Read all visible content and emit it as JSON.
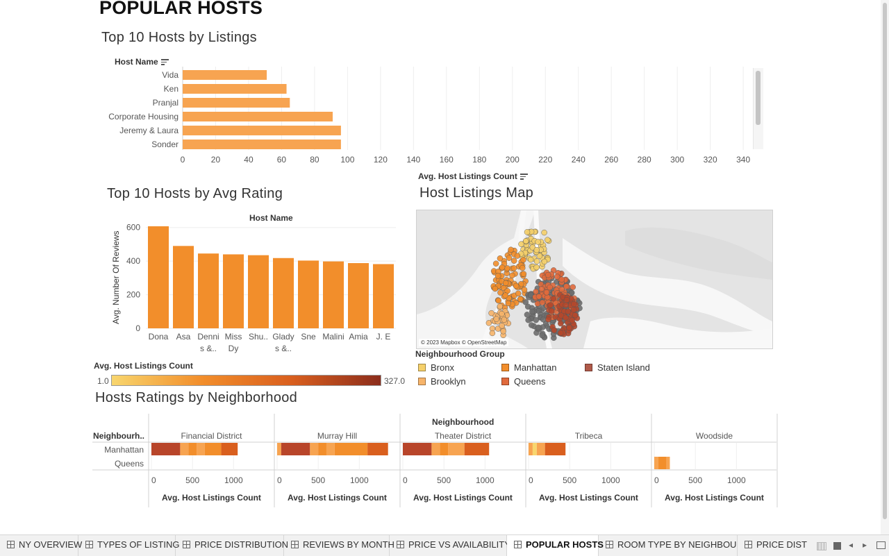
{
  "dashboard_title": "POPULAR HOSTS",
  "top_listings": {
    "title": "Top 10 Hosts by Listings",
    "row_header": "Host Name",
    "x_axis_title": "Avg. Host Listings Count",
    "bar_color": "#F7A451"
  },
  "avg_rating": {
    "title": "Top 10 Hosts by Avg Rating",
    "column_header": "Host Name",
    "y_axis_title": "Avg. Number Of Reviews",
    "bar_color": "#F28E2B"
  },
  "color_legend": {
    "title": "Avg. Host Listings Count",
    "min_label": "1.0",
    "max_label": "327.0",
    "gradient": [
      "#F8D66E",
      "#F28E2B",
      "#D95F1E",
      "#8C2D1C"
    ]
  },
  "map": {
    "title": "Host Listings Map",
    "attribution": "© 2023 Mapbox © OpenStreetMap"
  },
  "neighbourhood_legend": {
    "title": "Neighbourhood Group",
    "items": [
      {
        "label": "Bronx",
        "color": "#F5D06A"
      },
      {
        "label": "Manhattan",
        "color": "#F28E2B"
      },
      {
        "label": "Staten Island",
        "color": "#B05A4A"
      },
      {
        "label": "Brooklyn",
        "color": "#F7B46A"
      },
      {
        "label": "Queens",
        "color": "#E06A3C"
      }
    ]
  },
  "heatmap": {
    "title": "Hosts Ratings by Neighborhood",
    "column_header": "Neighbourhood",
    "row_header": "Neighbourh..",
    "rows": [
      "Manhattan",
      "Queens"
    ],
    "axis_title": "Avg. Host Listings Count"
  },
  "chart_data": [
    {
      "type": "bar",
      "orientation": "horizontal",
      "title": "Top 10 Hosts by Listings",
      "ylabel": "Host Name",
      "xlabel": "Avg. Host Listings Count",
      "categories": [
        "Vida",
        "Ken",
        "Pranjal",
        "Corporate Housing",
        "Jeremy & Laura",
        "Sonder"
      ],
      "values": [
        51,
        63,
        65,
        91,
        96,
        96
      ],
      "xlim": [
        0,
        345
      ],
      "x_ticks": [
        0,
        20,
        40,
        60,
        80,
        100,
        120,
        140,
        160,
        180,
        200,
        220,
        240,
        260,
        280,
        300,
        320,
        340
      ]
    },
    {
      "type": "bar",
      "title": "Top 10 Hosts by Avg Rating",
      "xlabel": "Host Name",
      "ylabel": "Avg. Number Of Reviews",
      "categories": [
        "Dona",
        "Asa",
        "Dennis &..",
        "Miss Dy",
        "Shu..",
        "Gladys &..",
        "Sne",
        "Malini",
        "Amia",
        "J. E"
      ],
      "values": [
        607,
        490,
        445,
        440,
        435,
        418,
        403,
        398,
        388,
        382
      ],
      "ylim": [
        0,
        640
      ],
      "y_ticks": [
        0,
        200,
        400,
        600
      ]
    },
    {
      "type": "heatmap",
      "title": "Hosts Ratings by Neighborhood",
      "column_header": "Neighbourhood",
      "row_header": "Neighbourh..",
      "xlabel": "Avg. Host Listings Count",
      "x_ticks": [
        0,
        500,
        1000
      ],
      "xlim": [
        0,
        1400
      ],
      "panels": [
        {
          "name": "Financial District",
          "rows": {
            "Manhattan": [
              [
                0,
                350,
                "#B8452A"
              ],
              [
                350,
                450,
                "#F7A451"
              ],
              [
                450,
                550,
                "#F28E2B"
              ],
              [
                550,
                650,
                "#F7A451"
              ],
              [
                650,
                850,
                "#F28E2B"
              ],
              [
                850,
                1050,
                "#D95F1E"
              ]
            ]
          }
        },
        {
          "name": "Murray Hill",
          "rows": {
            "Manhattan": [
              [
                0,
                50,
                "#F7A451"
              ],
              [
                50,
                400,
                "#B8452A"
              ],
              [
                400,
                500,
                "#F7A451"
              ],
              [
                500,
                600,
                "#F28E2B"
              ],
              [
                600,
                700,
                "#F7A451"
              ],
              [
                700,
                1100,
                "#F28E2B"
              ],
              [
                1100,
                1350,
                "#D95F1E"
              ]
            ]
          }
        },
        {
          "name": "Theater District",
          "rows": {
            "Manhattan": [
              [
                0,
                350,
                "#B8452A"
              ],
              [
                350,
                450,
                "#F7A451"
              ],
              [
                450,
                550,
                "#F28E2B"
              ],
              [
                550,
                750,
                "#F7A451"
              ],
              [
                750,
                1050,
                "#D95F1E"
              ]
            ]
          }
        },
        {
          "name": "Tribeca",
          "rows": {
            "Manhattan": [
              [
                0,
                50,
                "#F7A451"
              ],
              [
                50,
                100,
                "#F8D66E"
              ],
              [
                100,
                200,
                "#F7A451"
              ],
              [
                200,
                450,
                "#D95F1E"
              ]
            ]
          }
        },
        {
          "name": "Woodside",
          "rows": {
            "Queens": [
              [
                0,
                50,
                "#F7A451"
              ],
              [
                50,
                150,
                "#F28E2B"
              ],
              [
                150,
                190,
                "#F7A451"
              ]
            ]
          }
        }
      ]
    }
  ],
  "tabs": [
    {
      "label": "NY OVERVIEW"
    },
    {
      "label": "TYPES OF LISTING"
    },
    {
      "label": "PRICE DISTRIBUTION"
    },
    {
      "label": "REVIEWS BY MONTH"
    },
    {
      "label": "PRICE VS AVAILABILITY"
    },
    {
      "label": "POPULAR HOSTS",
      "active": true
    },
    {
      "label": "ROOM TYPE BY NEIGHBOUR..."
    },
    {
      "label": "PRICE DISTR"
    }
  ]
}
